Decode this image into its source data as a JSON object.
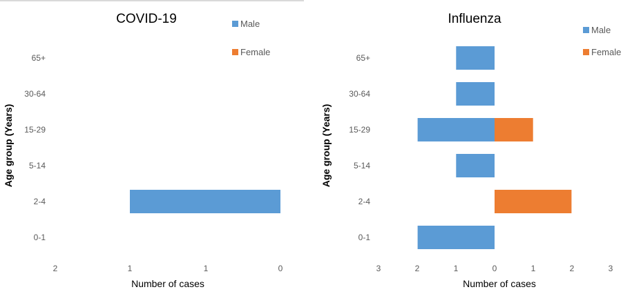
{
  "chart_data": [
    {
      "type": "bar",
      "orientation": "horizontal",
      "title": "COVID-19",
      "xlabel": "Number of cases",
      "ylabel": "Age group (Years)",
      "categories": [
        "65+",
        "30-64",
        "15-29",
        "5-14",
        "2-4",
        "0-1"
      ],
      "series": [
        {
          "name": "Male",
          "color": "#5b9bd5",
          "values": [
            0,
            0,
            0,
            0,
            1,
            0
          ]
        },
        {
          "name": "Female",
          "color": "#ed7d31",
          "values": [
            0,
            0,
            0,
            0,
            0,
            0
          ]
        }
      ],
      "x_tick_labels": [
        "2",
        "1",
        "1",
        "0"
      ],
      "xlim": [
        0,
        1.5
      ],
      "legend": "top-right",
      "grid": false
    },
    {
      "type": "bar",
      "orientation": "horizontal",
      "title": "Influenza",
      "xlabel": "Number of cases",
      "ylabel": "Age group (Years)",
      "categories": [
        "65+",
        "30-64",
        "15-29",
        "5-14",
        "2-4",
        "0-1"
      ],
      "series": [
        {
          "name": "Male",
          "color": "#5b9bd5",
          "values": [
            1,
            1,
            2,
            1,
            0,
            2
          ]
        },
        {
          "name": "Female",
          "color": "#ed7d31",
          "values": [
            0,
            0,
            1,
            0,
            2,
            0
          ]
        }
      ],
      "x_tick_labels": [
        "3",
        "2",
        "1",
        "0",
        "1",
        "2",
        "3"
      ],
      "xlim": [
        -3,
        3
      ],
      "legend": "top-right",
      "grid": false
    }
  ]
}
